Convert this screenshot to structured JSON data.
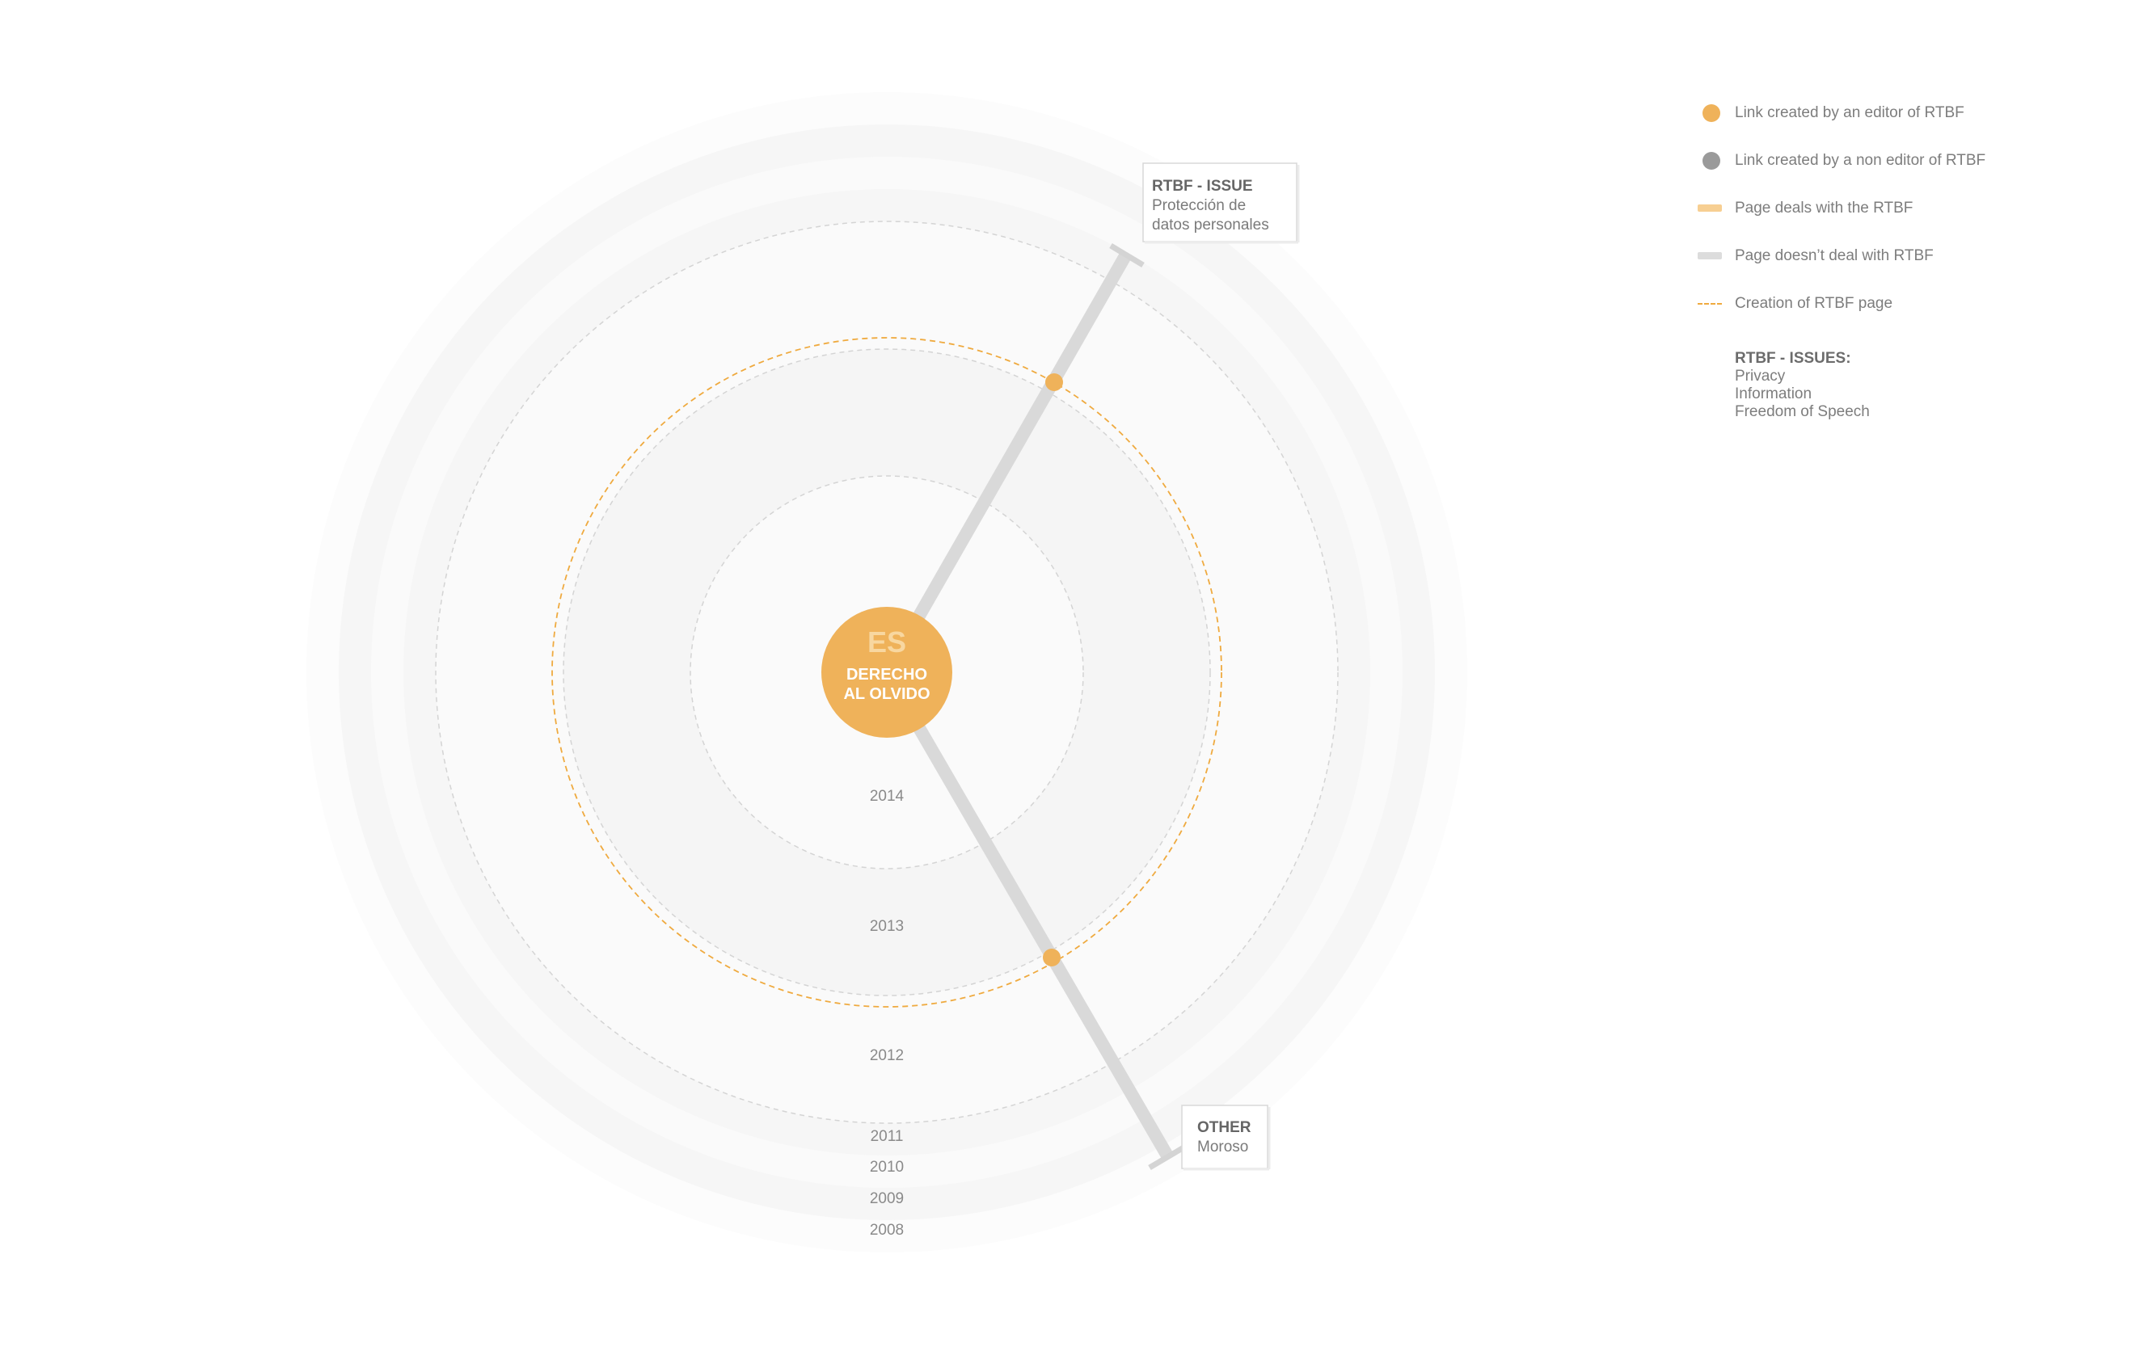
{
  "colors": {
    "accent": "#efb25a",
    "editor_dot": "#efb25a",
    "non_editor_dot": "#9a9a9a",
    "rtbf_bar": "#f7cf92",
    "non_rtbf_bar": "#dcdcdc",
    "creation_dash": "#efaa3f"
  },
  "center": {
    "lang": "ES",
    "line1": "DERECHO",
    "line2": "AL OLVIDO"
  },
  "years": [
    "2014",
    "2013",
    "2012",
    "2011",
    "2010",
    "2009",
    "2008"
  ],
  "boxes": {
    "top": {
      "category": "RTBF - ISSUE",
      "line1": "Protección de",
      "line2": "datos personales"
    },
    "bottom": {
      "category": "OTHER",
      "line1": "Moroso"
    }
  },
  "legend": {
    "items": [
      {
        "icon": "orange-dot-icon",
        "label": "Link created by an editor of RTBF"
      },
      {
        "icon": "gray-dot-icon",
        "label": "Link created by a non editor of RTBF"
      },
      {
        "icon": "orange-bar-icon",
        "label": "Page deals with the RTBF"
      },
      {
        "icon": "gray-bar-icon",
        "label": "Page doesn’t deal with RTBF"
      },
      {
        "icon": "orange-dash-icon",
        "label": "Creation of RTBF page"
      }
    ],
    "issues_title": "RTBF - ISSUES:",
    "issues": [
      "Privacy",
      "Information",
      "Freedom of Speech"
    ]
  }
}
